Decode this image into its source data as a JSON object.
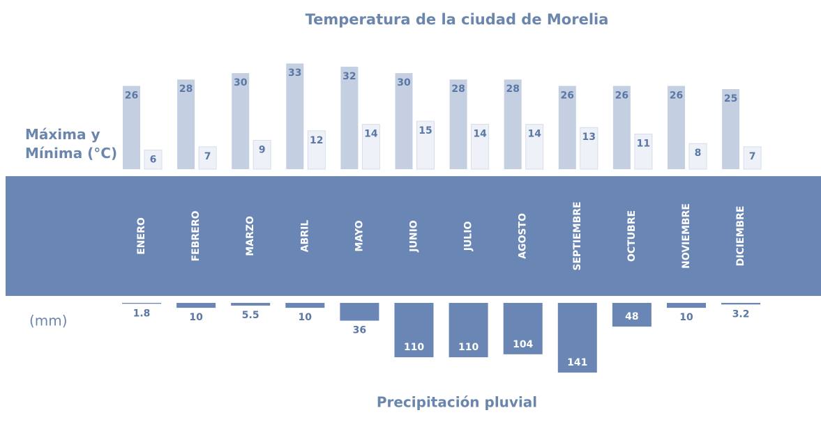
{
  "chart_data": [
    {
      "type": "bar",
      "title": "Temperatura de la ciudad de Morelia",
      "y_label": "Máxima y Mínima (°C)",
      "categories": [
        "ENERO",
        "FEBRERO",
        "MARZO",
        "ABRIL",
        "MAYO",
        "JUNIO",
        "JULIO",
        "AGOSTO",
        "SEPTIEMBRE",
        "OCTUBRE",
        "NOVIEMBRE",
        "DICIEMBRE"
      ],
      "series": [
        {
          "color": "#c4d0e2",
          "values": [
            26,
            28,
            30,
            33,
            32,
            30,
            28,
            28,
            26,
            26,
            26,
            25
          ]
        },
        {
          "color": "#eef2f8",
          "values": [
            6,
            7,
            9,
            12,
            14,
            15,
            14,
            14,
            13,
            11,
            8,
            7
          ]
        }
      ]
    },
    {
      "type": "bar",
      "title": "Precipitación pluvial",
      "y_label": "(mm)",
      "color": "#6a86b4",
      "values": [
        1.8,
        10,
        5.5,
        10,
        36,
        110,
        110,
        104,
        141,
        48,
        10,
        3.2
      ]
    }
  ]
}
